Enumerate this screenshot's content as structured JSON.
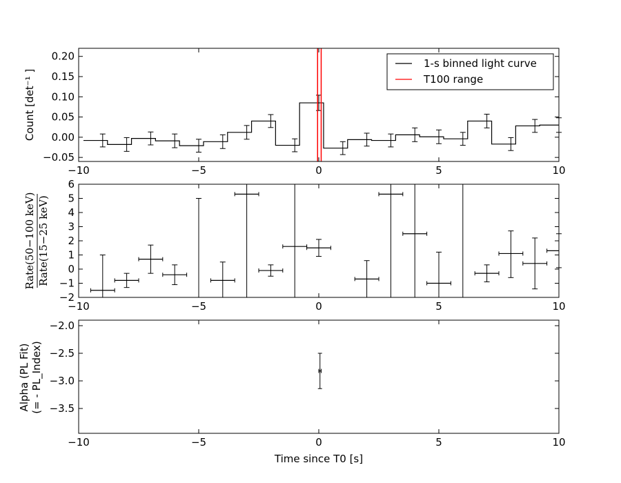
{
  "chart_data": [
    {
      "type": "line",
      "panel": "light-curve",
      "ylabel": "Count [det⁻¹ ]",
      "xlim": [
        -10,
        10
      ],
      "ylim": [
        -0.06,
        0.22
      ],
      "xticks": [
        "−10",
        "−5",
        "0",
        "5",
        "10"
      ],
      "yticks": [
        "−0.05",
        "0.00",
        "0.05",
        "0.10",
        "0.15",
        "0.20"
      ],
      "legend_position": "top-right",
      "series": [
        {
          "name": "1-s binned light curve",
          "color": "#000000",
          "bin_edges": [
            -9.8,
            -8.8,
            -7.8,
            -6.8,
            -5.8,
            -4.8,
            -3.8,
            -2.8,
            -1.8,
            -0.8,
            0.2,
            1.2,
            2.2,
            3.2,
            4.2,
            5.2,
            6.2,
            7.2,
            8.2,
            9.2,
            10.0
          ],
          "x": [
            -9.0,
            -8.0,
            -7.0,
            -6.0,
            -5.0,
            -4.0,
            -3.0,
            -2.0,
            -1.0,
            0.0,
            1.0,
            2.0,
            3.0,
            4.0,
            5.0,
            6.0,
            7.0,
            8.0,
            9.0,
            10.0
          ],
          "values": [
            -0.008,
            -0.018,
            -0.003,
            -0.009,
            -0.021,
            -0.011,
            0.012,
            0.04,
            -0.02,
            0.085,
            -0.027,
            -0.006,
            -0.008,
            0.006,
            0.001,
            -0.004,
            0.04,
            -0.017,
            0.028,
            0.03
          ],
          "errors": [
            0.016,
            0.017,
            0.016,
            0.017,
            0.016,
            0.017,
            0.017,
            0.016,
            0.016,
            0.019,
            0.016,
            0.016,
            0.016,
            0.017,
            0.017,
            0.016,
            0.017,
            0.016,
            0.016,
            0.018
          ]
        },
        {
          "name": "T100 range",
          "color": "#ff0000",
          "x": [
            -0.05,
            0.1
          ]
        }
      ]
    },
    {
      "type": "scatter",
      "panel": "hardness-ratio",
      "ylabel": "Rate(50−100 keV) / Rate(15−25 keV)",
      "ylabel_numerator": "Rate(50−100 keV)",
      "ylabel_denominator": "Rate(15−25 keV)",
      "xlim": [
        -10,
        10
      ],
      "ylim": [
        -2,
        6
      ],
      "xticks": [
        "−10",
        "−5",
        "0",
        "5",
        "10"
      ],
      "yticks": [
        "−2",
        "−1",
        "0",
        "1",
        "2",
        "3",
        "4",
        "5",
        "6"
      ],
      "series": [
        {
          "name": "",
          "x": [
            -9.0,
            -8.0,
            -7.0,
            -6.0,
            -4.0,
            -3.0,
            -2.0,
            -1.0,
            0.0,
            2.0,
            3.0,
            4.0,
            5.0,
            7.0,
            8.0,
            9.0,
            10.0
          ],
          "xerr": [
            0.5,
            0.5,
            0.5,
            0.5,
            0.5,
            0.5,
            0.5,
            0.5,
            0.5,
            0.5,
            0.5,
            0.5,
            0.5,
            0.5,
            0.5,
            0.5,
            0.5
          ],
          "values": [
            -1.5,
            -0.8,
            0.7,
            -0.4,
            -0.8,
            5.3,
            -0.1,
            1.6,
            1.5,
            -0.7,
            5.3,
            2.5,
            -1.0,
            -0.3,
            1.1,
            0.4,
            1.3
          ],
          "yerr_low": [
            0.6,
            0.5,
            1.0,
            0.7,
            1.3,
            8.0,
            0.4,
            8.0,
            0.6,
            1.3,
            8.0,
            8.0,
            1.0,
            0.6,
            1.7,
            1.8,
            1.2
          ],
          "yerr_high": [
            2.5,
            0.5,
            1.0,
            0.7,
            1.3,
            8.0,
            0.4,
            8.0,
            0.6,
            1.3,
            8.0,
            8.0,
            2.2,
            0.6,
            1.6,
            1.8,
            1.2
          ]
        },
        {
          "name": "",
          "segments": [
            {
              "x": -5.0,
              "y1": -2.0,
              "y2": 5.0
            },
            {
              "x": 6.0,
              "y1": -2.0,
              "y2": 6.0
            }
          ]
        }
      ]
    },
    {
      "type": "scatter",
      "panel": "alpha",
      "ylabel": "Alpha (PL Fit)",
      "ylabel_line2": "(= - PL_Index)",
      "xlabel": "Time since T0 [s]",
      "xlim": [
        -10,
        10
      ],
      "ylim": [
        -3.95,
        -1.9
      ],
      "xticks": [
        "−10",
        "−5",
        "0",
        "5",
        "10"
      ],
      "yticks": [
        "−2.0",
        "−2.5",
        "−3.0",
        "−3.5"
      ],
      "series": [
        {
          "name": "",
          "x": [
            0.05
          ],
          "xerr": [
            0.05
          ],
          "values": [
            -2.82
          ],
          "yerr": [
            0.32
          ]
        }
      ]
    }
  ]
}
